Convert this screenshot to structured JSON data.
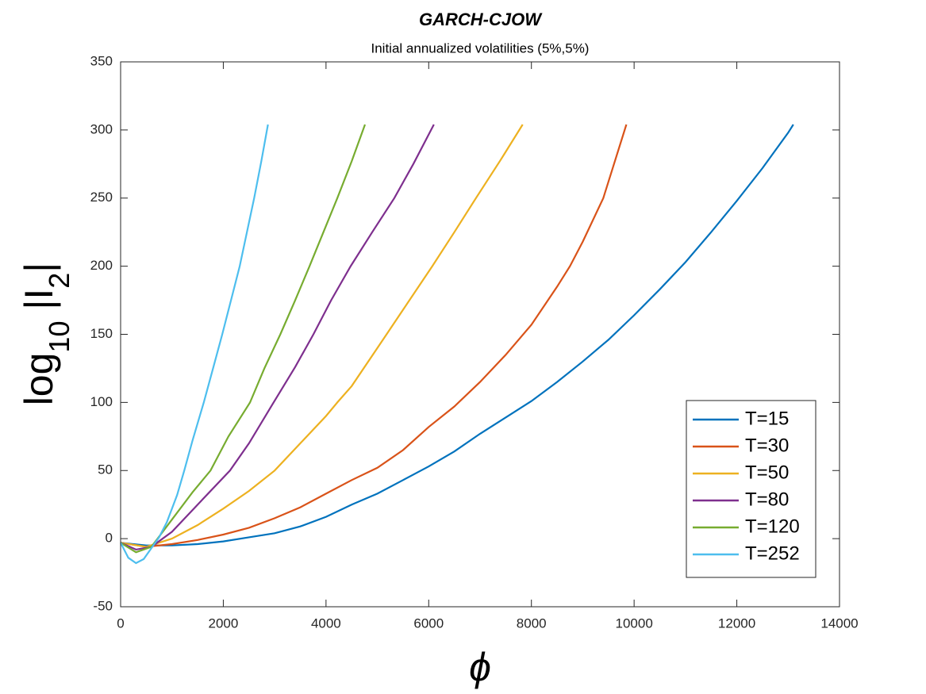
{
  "chart_data": {
    "type": "line",
    "title": "GARCH-CJOW",
    "subtitle": "Initial annualized volatilities (5%,5%)",
    "xlabel": "ϕ",
    "ylabel_parts": [
      "log",
      "10",
      " |I",
      "2",
      "|"
    ],
    "xlim": [
      0,
      14000
    ],
    "xticks": [
      0,
      2000,
      4000,
      6000,
      8000,
      10000,
      12000,
      14000
    ],
    "ylim": [
      -50,
      350
    ],
    "yticks": [
      -50,
      0,
      50,
      100,
      150,
      200,
      250,
      300,
      350
    ],
    "legend": "lower right",
    "series": [
      {
        "name": "T=15",
        "color": "#0072BD",
        "x": [
          0,
          500,
          1000,
          1500,
          2000,
          2500,
          3000,
          3500,
          4000,
          4500,
          5000,
          5500,
          6000,
          6500,
          7000,
          7500,
          8000,
          8500,
          9000,
          9500,
          10000,
          10500,
          11000,
          11500,
          12000,
          12500,
          13000,
          13100
        ],
        "values": [
          -3,
          -5,
          -5,
          -4,
          -2,
          1,
          4,
          9,
          16,
          25,
          33,
          43,
          53,
          64,
          77,
          89,
          101,
          115,
          130,
          146,
          164,
          183,
          203,
          225,
          248,
          272,
          298,
          304
        ]
      },
      {
        "name": "T=30",
        "color": "#D95319",
        "x": [
          0,
          500,
          1000,
          1500,
          2000,
          2500,
          3000,
          3500,
          4000,
          4500,
          5000,
          5500,
          6000,
          6500,
          7000,
          7500,
          8000,
          8500,
          8750,
          9000,
          9400,
          9850
        ],
        "values": [
          -3,
          -6,
          -4,
          -1,
          3,
          8,
          15,
          23,
          33,
          43,
          52,
          65,
          82,
          97,
          115,
          135,
          157,
          185,
          200,
          218,
          250,
          304
        ]
      },
      {
        "name": "T=50",
        "color": "#EDB120",
        "x": [
          0,
          500,
          1000,
          1500,
          2000,
          2500,
          3000,
          3500,
          4000,
          4220,
          4500,
          5000,
          5180,
          5500,
          6070,
          6500,
          6920,
          7400,
          7830
        ],
        "values": [
          -3,
          -6,
          0,
          10,
          22,
          35,
          50,
          70,
          90,
          100,
          112,
          140,
          150,
          168,
          200,
          225,
          250,
          278,
          304
        ]
      },
      {
        "name": "T=80",
        "color": "#7E2F8E",
        "x": [
          0,
          300,
          600,
          1000,
          1500,
          2130,
          2500,
          2980,
          3400,
          3755,
          4100,
          4480,
          4900,
          5330,
          5700,
          6100
        ],
        "values": [
          -3,
          -8,
          -6,
          5,
          25,
          50,
          70,
          100,
          126,
          150,
          175,
          200,
          225,
          250,
          275,
          304
        ]
      },
      {
        "name": "T=120",
        "color": "#77AC30",
        "x": [
          0,
          300,
          600,
          1000,
          1400,
          1750,
          2100,
          2520,
          2800,
          3110,
          3400,
          3680,
          3950,
          4220,
          4500,
          4760
        ],
        "values": [
          -3,
          -10,
          -6,
          14,
          34,
          50,
          75,
          100,
          125,
          150,
          175,
          200,
          225,
          250,
          277,
          304
        ]
      },
      {
        "name": "T=252",
        "color": "#4DBEEE",
        "x": [
          0,
          150,
          300,
          450,
          600,
          750,
          900,
          1100,
          1240,
          1400,
          1620,
          1800,
          1980,
          2150,
          2320,
          2460,
          2600,
          2740,
          2870
        ],
        "values": [
          -3,
          -14,
          -18,
          -15,
          -7,
          1,
          12,
          32,
          50,
          72,
          100,
          125,
          150,
          175,
          200,
          225,
          250,
          277,
          304
        ]
      }
    ]
  }
}
